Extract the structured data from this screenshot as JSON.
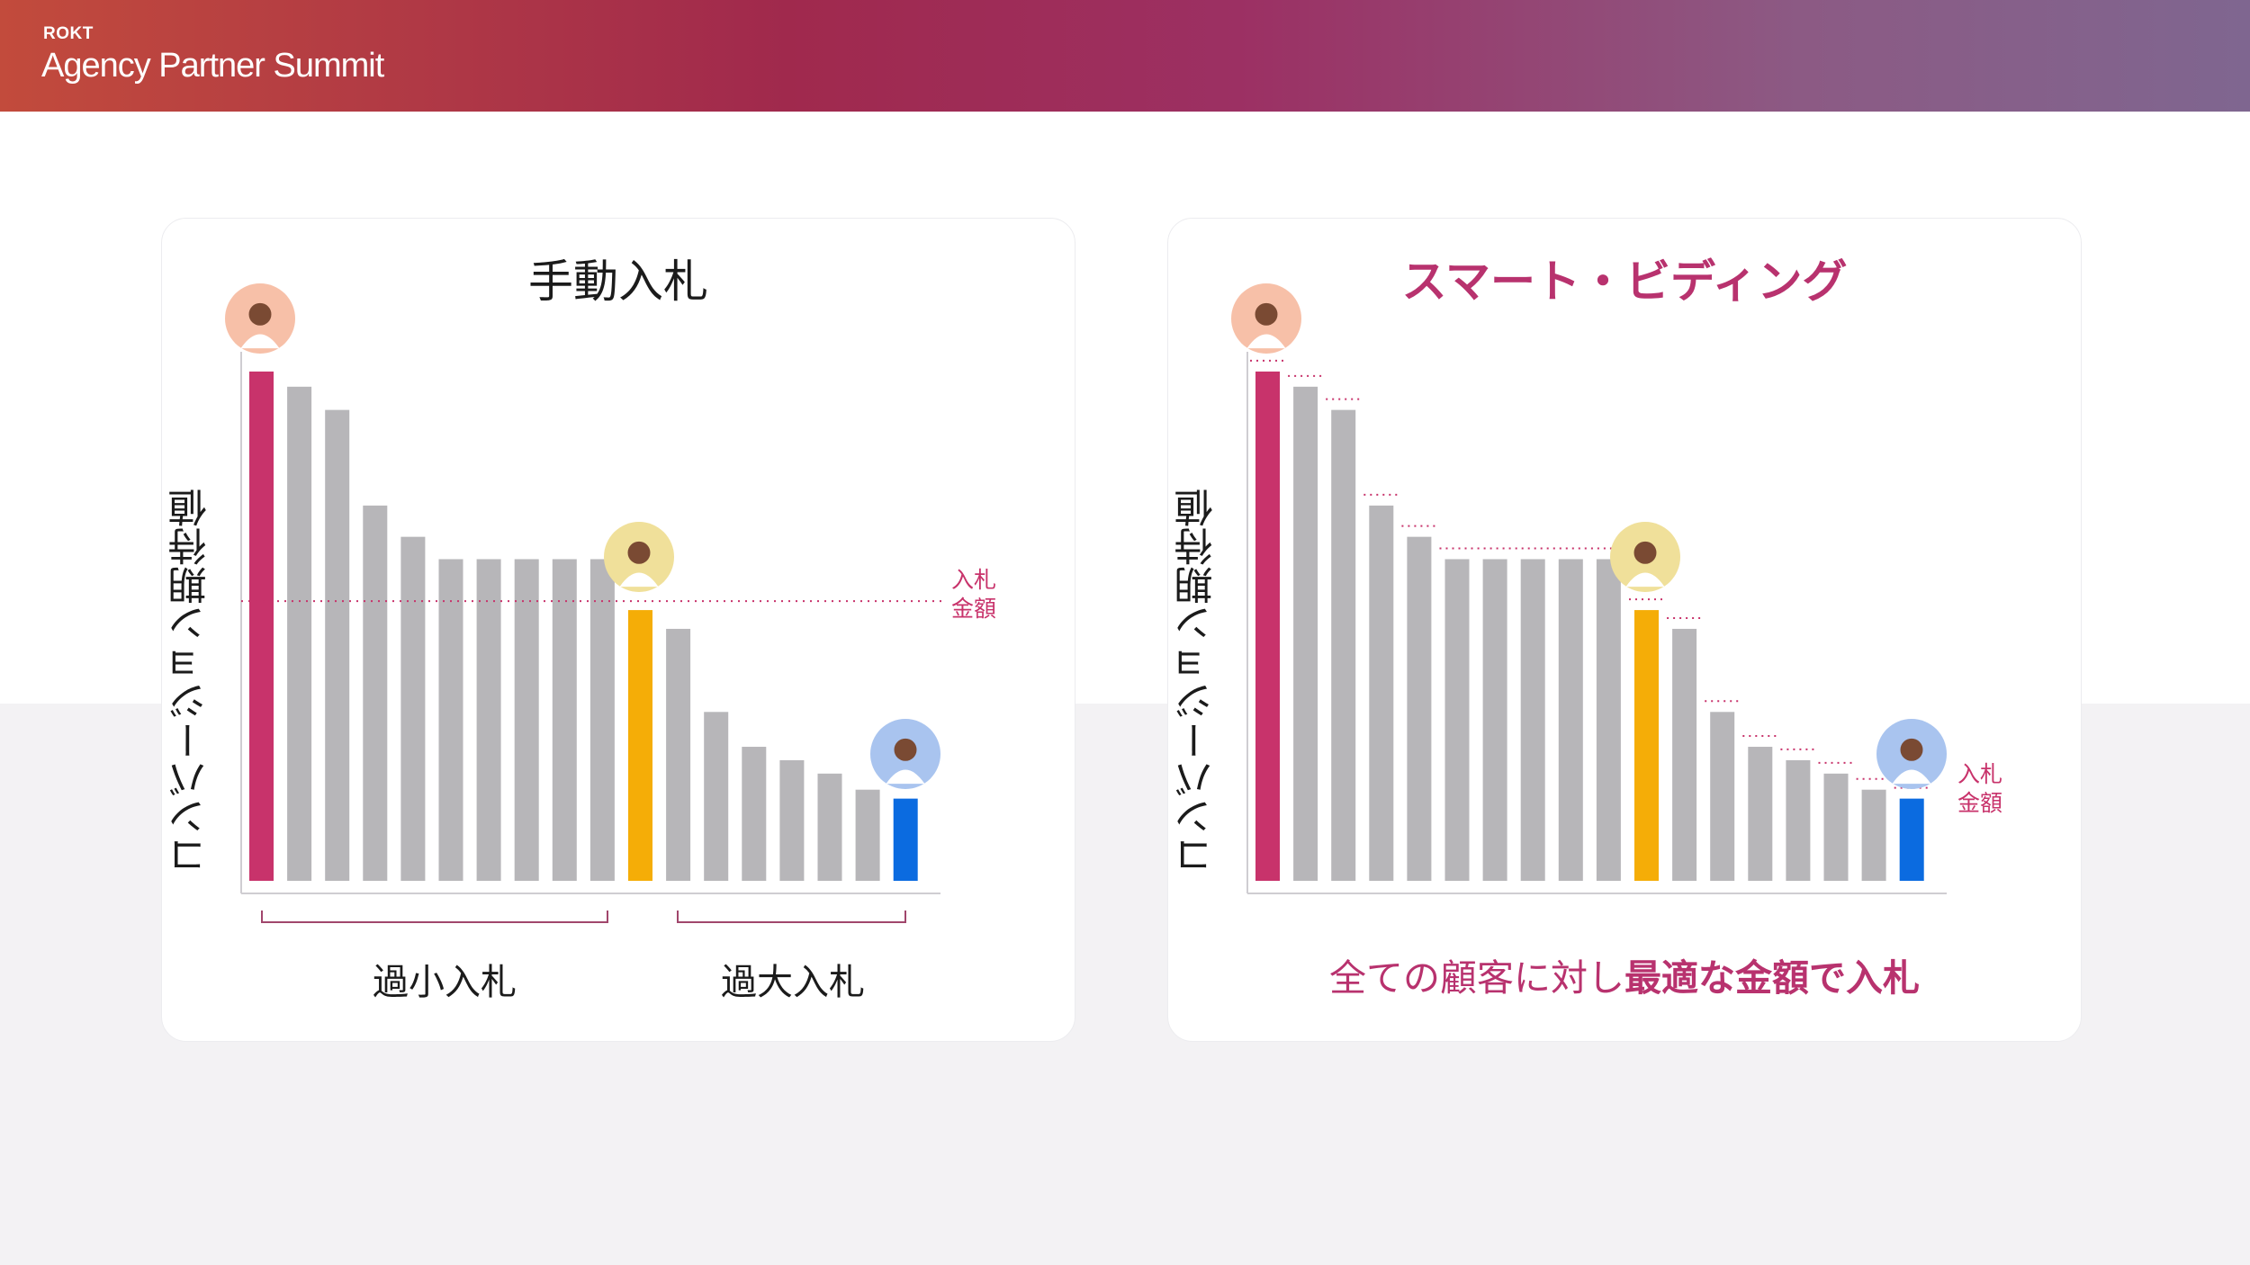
{
  "header": {
    "brand": "ROKT",
    "event": "Agency Partner Summit"
  },
  "colors": {
    "pink": "#c8336b",
    "gray": "#b7b6b9",
    "gold": "#f5ad07",
    "blue": "#0b6be0"
  },
  "left_panel": {
    "title": "手動入札",
    "y_label": "コンバージョン期待値",
    "bid_label": [
      "入札",
      "金額"
    ],
    "under_bid": "過小入札",
    "over_bid": "過大入札"
  },
  "right_panel": {
    "title": "スマート・ビディング",
    "y_label": "コンバージョン期待値",
    "bid_label": [
      "入札",
      "金額"
    ],
    "note_prefix": "全ての顧客に対し",
    "note_bold": "最適な金額で入札"
  },
  "avatars": [
    {
      "name": "high-value-customer",
      "background": "#f7c0a8"
    },
    {
      "name": "mid-value-customer",
      "background": "#f0e09a"
    },
    {
      "name": "low-value-customer",
      "background": "#a9c4ef"
    }
  ],
  "chart_data": [
    {
      "type": "bar",
      "title": "手動入札",
      "ylabel": "コンバージョン期待値",
      "values": [
        570,
        553,
        527,
        420,
        385,
        360,
        360,
        360,
        360,
        360,
        303,
        282,
        189,
        150,
        135,
        120,
        102,
        92
      ],
      "highlight": {
        "0": "pink",
        "10": "gold",
        "17": "blue"
      },
      "bid_level": 313,
      "ylim": [
        0,
        580
      ]
    },
    {
      "type": "bar",
      "title": "スマート・ビディング",
      "ylabel": "コンバージョン期待値",
      "values": [
        570,
        553,
        527,
        420,
        385,
        360,
        360,
        360,
        360,
        360,
        303,
        282,
        189,
        150,
        135,
        120,
        102,
        92
      ],
      "highlight": {
        "0": "pink",
        "10": "gold",
        "17": "blue"
      },
      "bid_level": "per-bar",
      "ylim": [
        0,
        580
      ]
    }
  ]
}
